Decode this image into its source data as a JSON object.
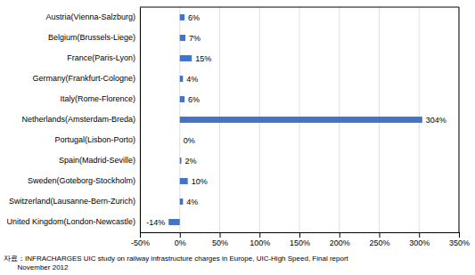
{
  "chart_data": {
    "type": "bar",
    "orientation": "horizontal",
    "categories": [
      "United Kingdom(London-Newcastle)",
      "Switzerland(Lausanne-Bern-Zurich)",
      "Sweden(Goteborg-Stockholm)",
      "Spain(Madrid-Seville)",
      "Portugal(Lisbon-Porto)",
      "Netherlands(Amsterdam-Breda)",
      "Italy(Rome-Florence)",
      "Germany(Frankfurt-Cologne)",
      "France(Paris-Lyon)",
      "Belgium(Brussels-Liege)",
      "Austria(Vienna-Salzburg)"
    ],
    "values": [
      -14,
      4,
      10,
      2,
      0,
      304,
      6,
      4,
      15,
      7,
      6
    ],
    "value_labels": [
      "-14%",
      "4%",
      "10%",
      "2%",
      "0%",
      "304%",
      "6%",
      "4%",
      "15%",
      "7%",
      "6%"
    ],
    "data_labels": true,
    "color": "#4472c4",
    "xlim": [
      -50,
      350
    ],
    "xticks": [
      {
        "value": -50,
        "label": "-50%"
      },
      {
        "value": 0,
        "label": "0%"
      },
      {
        "value": 50,
        "label": "50%"
      },
      {
        "value": 100,
        "label": "100%"
      },
      {
        "value": 150,
        "label": "150%"
      },
      {
        "value": 200,
        "label": "200%"
      },
      {
        "value": 250,
        "label": "250%"
      },
      {
        "value": 300,
        "label": "300%"
      },
      {
        "value": 350,
        "label": "350%"
      }
    ],
    "grid": true,
    "annotations": [
      "자료：INFRACHARGES UIC study on railway infrastructure charges in Europe, UIC-High Speed, Final report\n       November 2012"
    ]
  }
}
